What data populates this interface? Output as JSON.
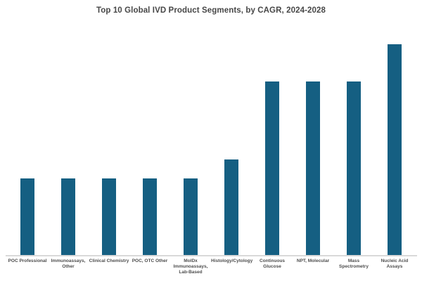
{
  "chart_data": {
    "type": "bar",
    "title": "Top 10 Global IVD Product Segments, by CAGR, 2024-2028",
    "categories": [
      "POC Professional",
      "Immunoassays, Other",
      "Clinical Chemistry",
      "POC, OTC Other",
      "MolDx Immunoassays, Lab-Based",
      "Histology/Cytology",
      "Continuous Glucose",
      "NPT, Molecular",
      "Mass Spectrometry",
      "Nucleic Acid Assays"
    ],
    "category_label_lines": [
      [
        "POC Professional"
      ],
      [
        "Immunoassays,",
        "Other"
      ],
      [
        "Clinical Chemistry"
      ],
      [
        "POC, OTC Other"
      ],
      [
        "MolDx",
        "Immunoassays,",
        "Lab-Based"
      ],
      [
        "Histology/Cytology"
      ],
      [
        "Continuous",
        "Glucose"
      ],
      [
        "NPT, Molecular"
      ],
      [
        "Mass",
        "Spectrometry"
      ],
      [
        "Nucleic Acid",
        "Assays"
      ]
    ],
    "values": [
      36.3,
      36.3,
      36.3,
      36.3,
      36.3,
      45.3,
      82.3,
      82.3,
      82.3,
      100
    ],
    "value_unit": "relative bar height, percent of tallest bar (no numeric axis shown)",
    "xlabel": "",
    "ylabel": "",
    "ylim": [
      0,
      100
    ],
    "grid": false,
    "legend": false,
    "y_axis_visible": false,
    "bar_color": "#155f82",
    "axis_line_color": "#d9d9d9",
    "title_color": "#474747",
    "label_color": "#4d4d4d",
    "background_color": "#ffffff"
  }
}
